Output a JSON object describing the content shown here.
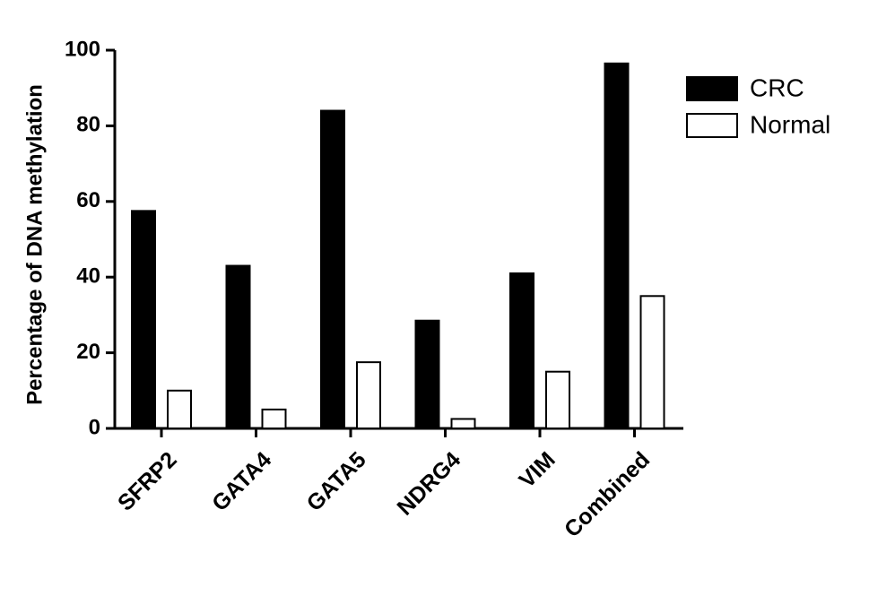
{
  "chart_data": {
    "type": "bar",
    "title": "",
    "xlabel": "",
    "ylabel": "Percentage of DNA methylation",
    "ylim": [
      0,
      100
    ],
    "yticks": [
      0,
      20,
      40,
      60,
      80,
      100
    ],
    "categories": [
      "SFRP2",
      "GATA4",
      "GATA5",
      "NDRG4",
      "VIM",
      "Combined"
    ],
    "series": [
      {
        "name": "CRC",
        "color": "#000000",
        "values": [
          57.5,
          43,
          84,
          28.5,
          41,
          96.5
        ]
      },
      {
        "name": "Normal",
        "color": "#ffffff",
        "values": [
          10,
          5,
          17.5,
          2.5,
          15,
          35
        ]
      }
    ],
    "legend_position": "top-right",
    "grid": false
  }
}
